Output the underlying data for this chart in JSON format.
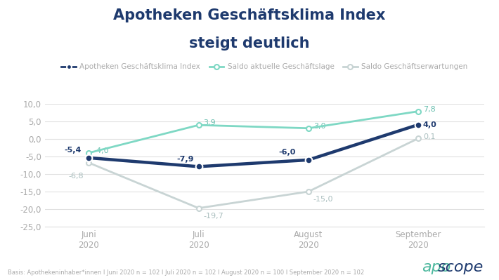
{
  "title_line1": "Apotheken Geschäftsklima Index",
  "title_line2": "steigt deutlich",
  "categories": [
    "Juni\n2020",
    "Juli\n2020",
    "August\n2020",
    "September\n2020"
  ],
  "series": {
    "index": {
      "label": "Apotheken Geschäftsklima Index",
      "values": [
        -5.4,
        -7.9,
        -6.0,
        4.0
      ],
      "color": "#1e3a6e",
      "linewidth": 3.2,
      "marker": "o",
      "markersize": 7,
      "zorder": 5,
      "markerfacecolor": "#1e3a6e",
      "markeredgecolor": "#ffffff",
      "markeredgewidth": 1.5
    },
    "current": {
      "label": "Saldo aktuelle Geschäftslage",
      "values": [
        -4.0,
        3.9,
        3.0,
        7.8
      ],
      "color": "#7ed8c4",
      "linewidth": 2.0,
      "marker": "o",
      "markersize": 5,
      "zorder": 4,
      "markerfacecolor": "#ffffff",
      "markeredgecolor": "#7ed8c4",
      "markeredgewidth": 1.5
    },
    "expectations": {
      "label": "Saldo Geschäftserwartungen",
      "values": [
        -6.8,
        -19.7,
        -15.0,
        0.1
      ],
      "color": "#c8d4d4",
      "linewidth": 2.0,
      "marker": "o",
      "markersize": 5,
      "zorder": 3,
      "markerfacecolor": "#ffffff",
      "markeredgecolor": "#c8d4d4",
      "markeredgewidth": 1.5
    }
  },
  "ylim": [
    -25.0,
    10.0
  ],
  "yticks": [
    10.0,
    5.0,
    0.0,
    -5.0,
    -10.0,
    -15.0,
    -20.0,
    -25.0
  ],
  "footnote": "Basis: Apothekeninhaber*innen I Juni 2020 n = 102 I Juli 2020 n = 102 I August 2020 n = 100 I September 2020 n = 102",
  "aposcope_color_apo": "#4db89e",
  "aposcope_color_scope": "#1e3a6e",
  "background_color": "#ffffff",
  "title_color": "#1e3a6e",
  "title_fontsize": 15,
  "axis_color": "#aaaaaa",
  "tick_color": "#aaaaaa",
  "annot_color_index": "#1e3a6e",
  "annot_color_current": "#6abfaf",
  "annot_color_expect": "#aabfbf",
  "grid_color": "#e0e0e0"
}
